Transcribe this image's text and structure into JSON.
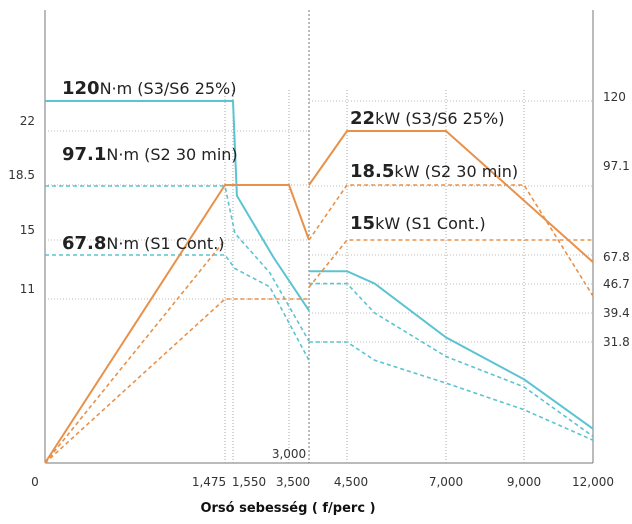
{
  "chart_data": {
    "type": "line",
    "xlabel": "Orsó sebesség ( f/perc )",
    "x_ticks": [
      "0",
      "1,475",
      "1,550",
      "3,500",
      "4,500",
      "7,000",
      "9,000",
      "12,000"
    ],
    "x_tick_values": [
      0,
      1475,
      1550,
      3500,
      4500,
      7000,
      9000,
      12000
    ],
    "x_marker": {
      "label": "3,000",
      "value": 3000
    },
    "left_axis": {
      "unit": "kW",
      "ticks": [
        "22",
        "18.5",
        "15",
        "11"
      ],
      "tick_values": [
        22,
        18.5,
        15,
        11
      ],
      "range": [
        0,
        25
      ]
    },
    "right_axis": {
      "unit": "N·m",
      "ticks": [
        "120",
        "97.1",
        "67.8",
        "46.7",
        "39.4",
        "31.8"
      ],
      "tick_values": [
        120,
        97.1,
        67.8,
        46.7,
        39.4,
        31.8
      ]
    },
    "annotations": [
      {
        "num": "120",
        "text": "N·m (S3/S6 25%)",
        "color": "#222222"
      },
      {
        "num": "97.1",
        "text": "N·m (S2 30 min)",
        "color": "#222222"
      },
      {
        "num": "67.8",
        "text": "N·m (S1 Cont.)",
        "color": "#222222"
      },
      {
        "num": "22",
        "text": "kW (S3/S6 25%)",
        "color": "#222222"
      },
      {
        "num": "18.5",
        "text": "kW (S2 30 min)",
        "color": "#222222"
      },
      {
        "num": "15",
        "text": "kW (S1 Cont.)",
        "color": "#222222"
      }
    ],
    "power_series": [
      {
        "rating": "S3/S6 25%",
        "style": "solid",
        "color": "#e8914a",
        "segments": [
          {
            "x": [
              0,
              1475,
              3000,
              3500
            ],
            "y": [
              0,
              18.5,
              18.5,
              15
            ]
          },
          {
            "x": [
              3500,
              4500,
              7000,
              12000
            ],
            "y": [
              18.5,
              22,
              22,
              13.5
            ]
          }
        ]
      },
      {
        "rating": "S2 30 min",
        "style": "dashed",
        "color": "#e8914a",
        "segments": [
          {
            "x": [
              0,
              1475
            ],
            "y": [
              0,
              15
            ]
          },
          {
            "x": [
              3500,
              4500,
              9000,
              12000
            ],
            "y": [
              15,
              18.5,
              18.5,
              11.2
            ]
          }
        ]
      },
      {
        "rating": "S1 Cont.",
        "style": "dashed",
        "color": "#e8914a",
        "segments": [
          {
            "x": [
              0,
              1475,
              3500
            ],
            "y": [
              0,
              11,
              11
            ]
          },
          {
            "x": [
              3500,
              4500,
              12000
            ],
            "y": [
              11.8,
              15,
              15
            ]
          }
        ]
      }
    ],
    "torque_series": [
      {
        "rating": "S3/S6 25%",
        "style": "solid",
        "color": "#5bc3d1",
        "segments": [
          {
            "x": [
              0,
              1550,
              1650,
              2600,
              3500
            ],
            "y": [
              120,
              120,
              93,
              66,
              40
            ]
          },
          {
            "x": [
              3500,
              4500,
              5200,
              7000,
              9000,
              12000
            ],
            "y": [
              56,
              56,
              47,
              33,
              22,
              9
            ]
          }
        ]
      },
      {
        "rating": "S2 30 min",
        "style": "dashed",
        "color": "#5bc3d1",
        "segments": [
          {
            "x": [
              0,
              1475,
              1600,
              2500,
              3500
            ],
            "y": [
              97.1,
              97.1,
              77,
              55,
              32
            ]
          },
          {
            "x": [
              3500,
              4500,
              5200,
              7000,
              9000,
              12000
            ],
            "y": [
              47,
              47,
              39.4,
              28,
              20,
              7
            ]
          }
        ]
      },
      {
        "rating": "S1 Cont.",
        "style": "dashed",
        "color": "#5bc3d1",
        "segments": [
          {
            "x": [
              0,
              1475,
              1600,
              2500,
              3500
            ],
            "y": [
              67.8,
              67.8,
              58,
              46,
              27
            ]
          },
          {
            "x": [
              3500,
              4500,
              5200,
              7000,
              9000,
              12000
            ],
            "y": [
              31.8,
              31.8,
              27,
              21,
              14,
              6
            ]
          }
        ]
      }
    ],
    "grid": true
  }
}
